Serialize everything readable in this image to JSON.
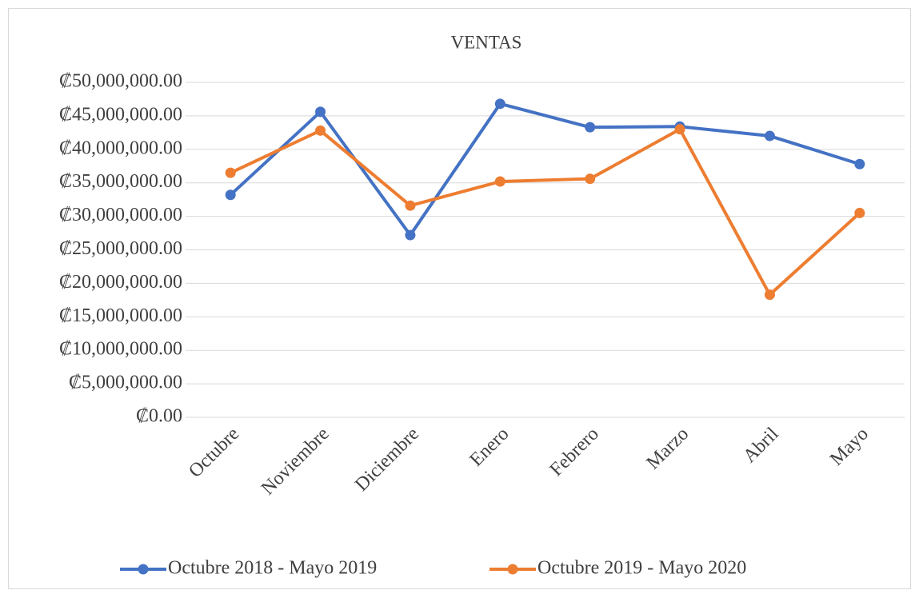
{
  "chart_data": {
    "type": "line",
    "title": "VENTAS",
    "categories": [
      "Octubre",
      "Noviembre",
      "Diciembre",
      "Enero",
      "Febrero",
      "Marzo",
      "Abril",
      "Mayo"
    ],
    "series": [
      {
        "name": "Octubre 2018 - Mayo 2019",
        "color": "#4472c4",
        "values": [
          33200000,
          45600000,
          27200000,
          46800000,
          43300000,
          43400000,
          42000000,
          37800000
        ]
      },
      {
        "name": "Octubre 2019 - Mayo 2020",
        "color": "#ed7d31",
        "values": [
          36500000,
          42800000,
          31600000,
          35200000,
          35600000,
          43000000,
          18300000,
          30500000
        ]
      }
    ],
    "ylim": [
      0,
      50000000
    ],
    "yticks": [
      {
        "value": 0,
        "label": "₡0.00"
      },
      {
        "value": 5000000,
        "label": "₡5,000,000.00"
      },
      {
        "value": 10000000,
        "label": "₡10,000,000.00"
      },
      {
        "value": 15000000,
        "label": "₡15,000,000.00"
      },
      {
        "value": 20000000,
        "label": "₡20,000,000.00"
      },
      {
        "value": 25000000,
        "label": "₡25,000,000.00"
      },
      {
        "value": 30000000,
        "label": "₡30,000,000.00"
      },
      {
        "value": 35000000,
        "label": "₡35,000,000.00"
      },
      {
        "value": 40000000,
        "label": "₡40,000,000.00"
      },
      {
        "value": 45000000,
        "label": "₡45,000,000.00"
      },
      {
        "value": 50000000,
        "label": "₡50,000,000.00"
      }
    ],
    "grid": true,
    "legend": "bottom"
  }
}
